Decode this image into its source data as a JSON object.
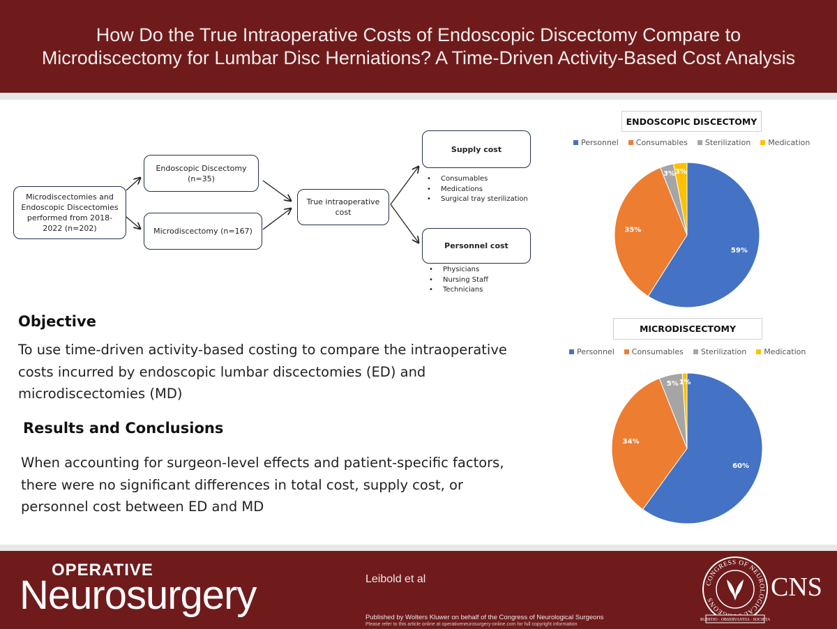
{
  "header": {
    "title": "How Do the True Intraoperative Costs of Endoscopic Discectomy Compare to Microdiscectomy for Lumbar Disc Herniations? A Time-Driven Activity-Based Cost Analysis"
  },
  "flowchart": {
    "start": "Microdiscectomies and Endoscopic Discectomies performed from 2018-2022 (n=202)",
    "endoscopic": "Endoscopic Discectomy (n=35)",
    "micro": "Microdiscectomy (n=167)",
    "true_cost": "True intraoperative cost",
    "supply": {
      "title": "Supply cost",
      "items": [
        "Consumables",
        "Medications",
        "Surgical tray sterilization"
      ]
    },
    "personnel": {
      "title": "Personnel cost",
      "items": [
        "Physicians",
        "Nursing Staff",
        "Technicians"
      ]
    }
  },
  "objective": {
    "heading": "Objective",
    "text": "To use time-driven activity-based costing to compare the intraoperative costs incurred by endoscopic lumbar discectomies (ED) and microdiscectomies (MD)"
  },
  "results": {
    "heading": "Results and Conclusions",
    "text": "When accounting for surgeon-level effects and patient-specific factors, there were no significant differences in total cost, supply cost, or personnel cost between ED and MD"
  },
  "colors": {
    "Personnel": "#4472c4",
    "Consumables": "#ed7d31",
    "Sterilization": "#a5a5a5",
    "Medication": "#ffc000",
    "brand": "#6f1b1c"
  },
  "chart_data": [
    {
      "type": "pie",
      "title": "ENDOSCOPIC DISCECTOMY",
      "labels": [
        "Personnel",
        "Consumables",
        "Sterilization",
        "Medication"
      ],
      "values": [
        59,
        35,
        3,
        3
      ],
      "value_labels": [
        "59%",
        "35%",
        "3%",
        "3%"
      ],
      "legend": "top"
    },
    {
      "type": "pie",
      "title": "MICRODISCECTOMY",
      "labels": [
        "Personnel",
        "Consumables",
        "Sterilization",
        "Medication"
      ],
      "values": [
        60,
        34,
        5,
        1
      ],
      "value_labels": [
        "60%",
        "34%",
        "5%",
        "1%"
      ],
      "legend": "top"
    }
  ],
  "footer": {
    "brand_top": "OPERATIVE",
    "brand_main": "Neurosurgery",
    "authors": "Leibold et al",
    "published": "Published by Wolters Kluwer on behalf of the Congress of Neurological Surgeons",
    "copyright": "Please refer to this article online at operativeneurosurgery-online.com for full copyright information",
    "org": "CNS",
    "seal_text": [
      "CONGRESS OF NEUROLOGICAL SURGEONS",
      "1951",
      "ERUDITIO",
      "OBSERVANTIA",
      "SOCIETAS"
    ]
  }
}
